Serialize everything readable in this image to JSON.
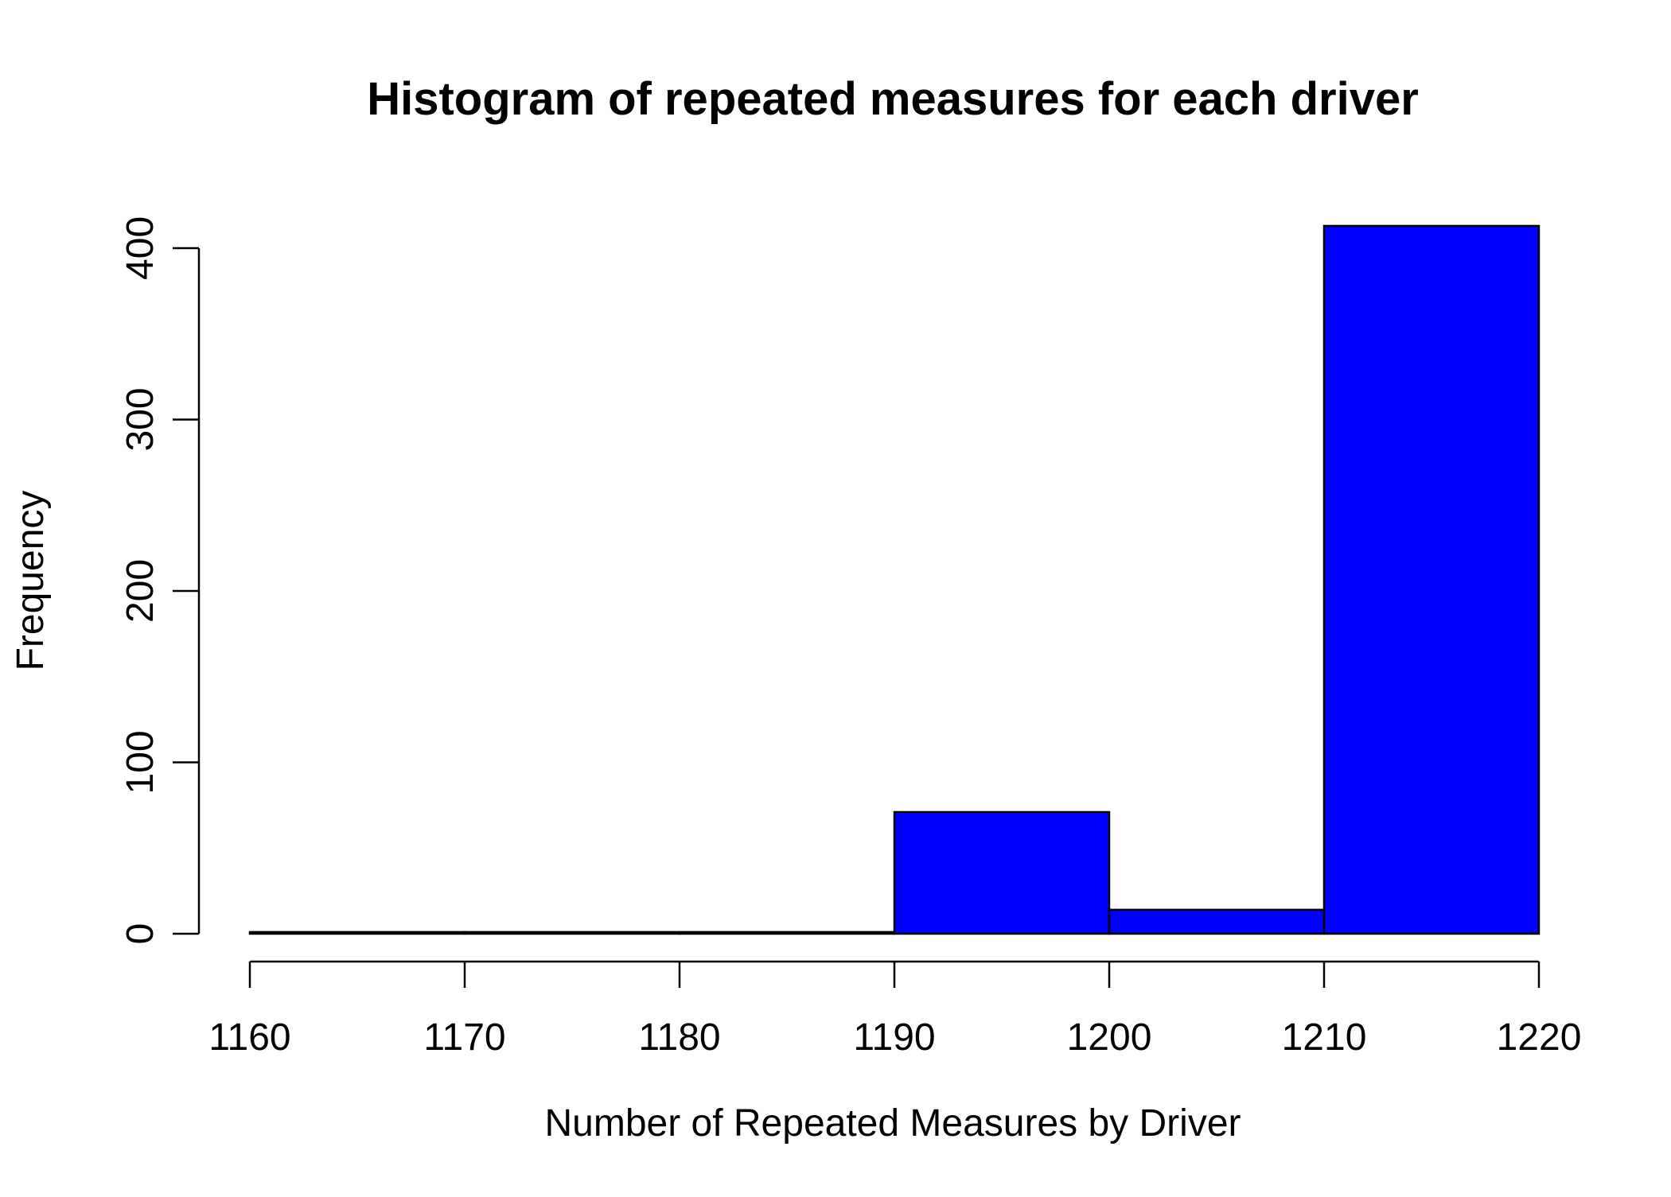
{
  "chart_data": {
    "type": "bar",
    "subtype": "histogram",
    "title": "Histogram of repeated measures for each driver",
    "xlabel": "Number of Repeated Measures by Driver",
    "ylabel": "Frequency",
    "bins": [
      {
        "from": 1160,
        "to": 1170,
        "count": 1
      },
      {
        "from": 1170,
        "to": 1180,
        "count": 1
      },
      {
        "from": 1180,
        "to": 1190,
        "count": 1
      },
      {
        "from": 1190,
        "to": 1200,
        "count": 71
      },
      {
        "from": 1200,
        "to": 1210,
        "count": 14
      },
      {
        "from": 1210,
        "to": 1220,
        "count": 413
      }
    ],
    "xlim": [
      1160,
      1220
    ],
    "ylim": [
      0,
      400
    ],
    "x_ticks": [
      1160,
      1170,
      1180,
      1190,
      1200,
      1210,
      1220
    ],
    "x_tick_labels": [
      "1160",
      "1170",
      "1180",
      "1190",
      "1200",
      "1210",
      "1220"
    ],
    "y_ticks": [
      0,
      100,
      200,
      300,
      400
    ],
    "y_tick_labels": [
      "0",
      "100",
      "200",
      "300",
      "400"
    ],
    "bar_color": "#0000ff",
    "edge_color": "#000000",
    "grid": false,
    "legend": "none"
  }
}
